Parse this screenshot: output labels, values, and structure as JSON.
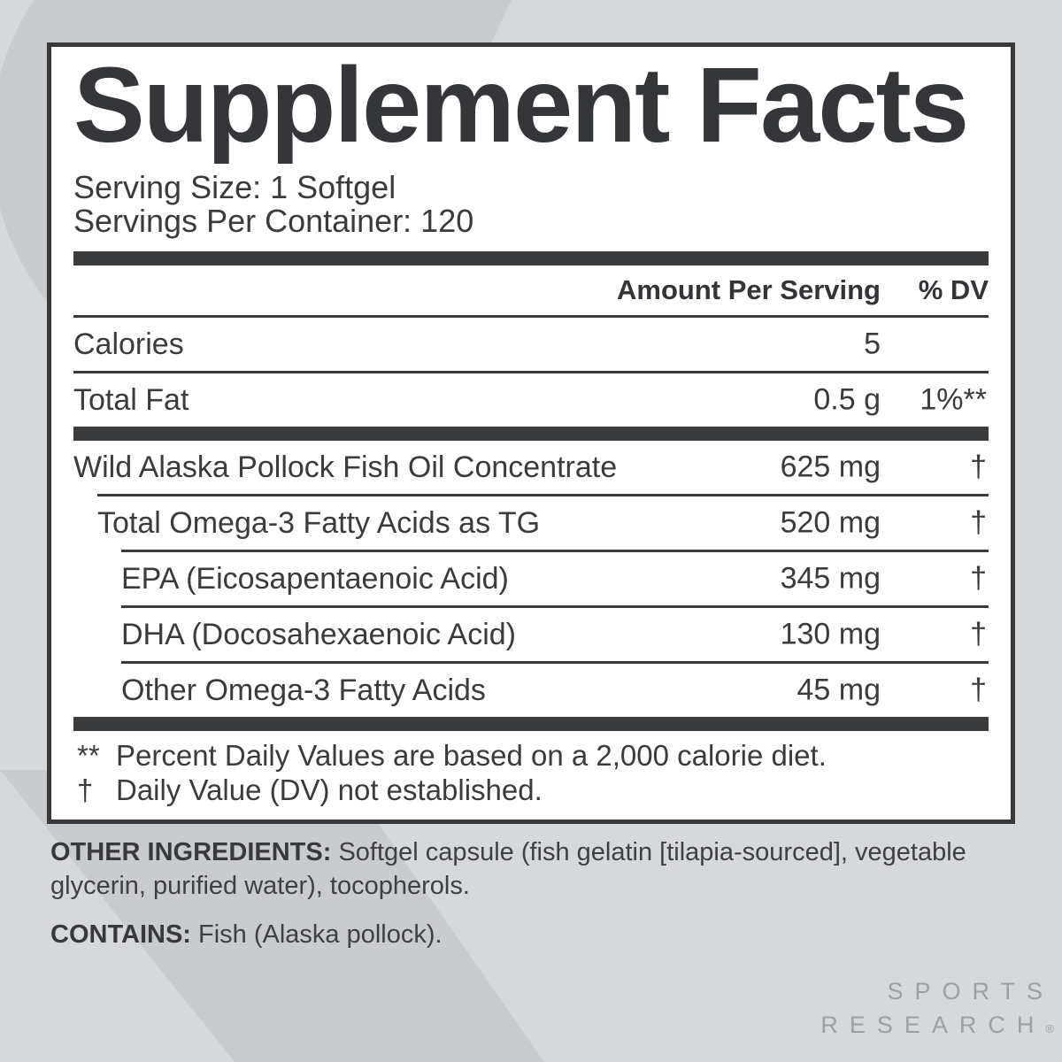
{
  "background": {
    "base_color": "#d6d8da",
    "decor_color": "#c9cbcd"
  },
  "panel": {
    "title": "Supplement Facts",
    "serving_size": "Serving Size: 1 Softgel",
    "servings_per_container": "Servings Per Container: 120",
    "columns": {
      "amount": "Amount Per Serving",
      "dv": "% DV"
    },
    "rows": [
      {
        "name": "Calories",
        "amount": "5",
        "dv": "",
        "indent": 0,
        "separator_above": "thin"
      },
      {
        "name": "Total Fat",
        "amount": "0.5 g",
        "dv": "1%**",
        "indent": 0,
        "separator_above": "thin"
      },
      {
        "name": "Wild Alaska Pollock Fish Oil Concentrate",
        "amount": "625 mg",
        "dv": "†",
        "indent": 0,
        "separator_above": "thick"
      },
      {
        "name": "Total Omega-3 Fatty Acids as TG",
        "amount": "520 mg",
        "dv": "†",
        "indent": 1,
        "separator_above": "thin"
      },
      {
        "name": "EPA (Eicosapentaenoic Acid)",
        "amount": "345 mg",
        "dv": "†",
        "indent": 2,
        "separator_above": "thin"
      },
      {
        "name": "DHA (Docosahexaenoic Acid)",
        "amount": "130 mg",
        "dv": "†",
        "indent": 2,
        "separator_above": "thin"
      },
      {
        "name": "Other Omega-3 Fatty Acids",
        "amount": "45 mg",
        "dv": "†",
        "indent": 2,
        "separator_above": "thin"
      }
    ],
    "footnotes": [
      {
        "symbol": "**",
        "text": "Percent Daily Values are based on a 2,000 calorie diet."
      },
      {
        "symbol": "†",
        "text": "Daily Value (DV) not established."
      }
    ]
  },
  "below": {
    "other_ingredients_label": "OTHER INGREDIENTS:",
    "other_ingredients_line1_rest": " Softgel capsule (fish gelatin [tilapia-sourced], vegetable",
    "other_ingredients_line2": "glycerin, purified water), tocopherols.",
    "contains_label": "CONTAINS:",
    "contains_text": " Fish (Alaska pollock)."
  },
  "brand": {
    "line1": "SPORTS",
    "line2": "RESEARCH",
    "reg_mark": "®",
    "color": "#9da0a2"
  }
}
